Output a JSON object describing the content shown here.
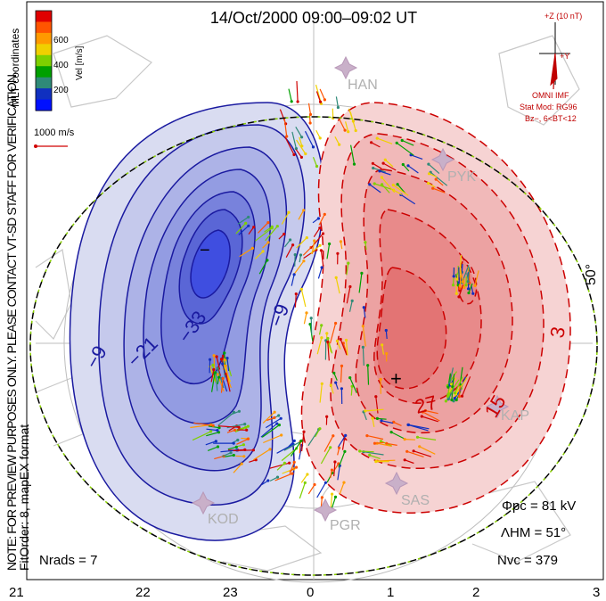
{
  "title": "14/Oct/2000 09:00–09:02 UT",
  "side_note_line1": "NOTE: FOR PREVIEW PURPOSES ONLY. PLEASE CONTACT VT-SD STAFF FOR VERIFICATION.",
  "side_note_line2": "FitOrder: 8, mapEX format",
  "coord_label": "MLT coordinates",
  "colorbar": {
    "label": "Vel [m/s]",
    "ticks": [
      "600",
      "400",
      "200"
    ],
    "colors": [
      "#e00000",
      "#ff5500",
      "#ff9a00",
      "#f0d000",
      "#7ed000",
      "#00a000",
      "#2f8a78",
      "#1030c0",
      "#0010ff"
    ]
  },
  "scale_label": "1000 m/s",
  "imf": {
    "z_label": "+Z (10 nT)",
    "y_label": "+Y",
    "omni": "OMNI IMF",
    "stat_mod": "Stat Mod: RG96",
    "bz": "Bz−, 6<BT<12"
  },
  "latitude_label": "50°",
  "stations": [
    "HAN",
    "PYK",
    "KAP",
    "SAS",
    "PGR",
    "KOD"
  ],
  "contours_neg": [
    "−9",
    "−21",
    "−33",
    "−9"
  ],
  "contours_pos": [
    "3",
    "15",
    "27"
  ],
  "min_marker": "−",
  "max_marker": "+",
  "stats": {
    "phi_pc": "Φpc = 81 kV",
    "lambda_hm": "ΛHM = 51°",
    "n_vc": "Nvc = 379",
    "n_rads": "Nrads = 7"
  },
  "mlt_ticks": [
    "21",
    "22",
    "23",
    "0",
    "1",
    "2",
    "3"
  ]
}
